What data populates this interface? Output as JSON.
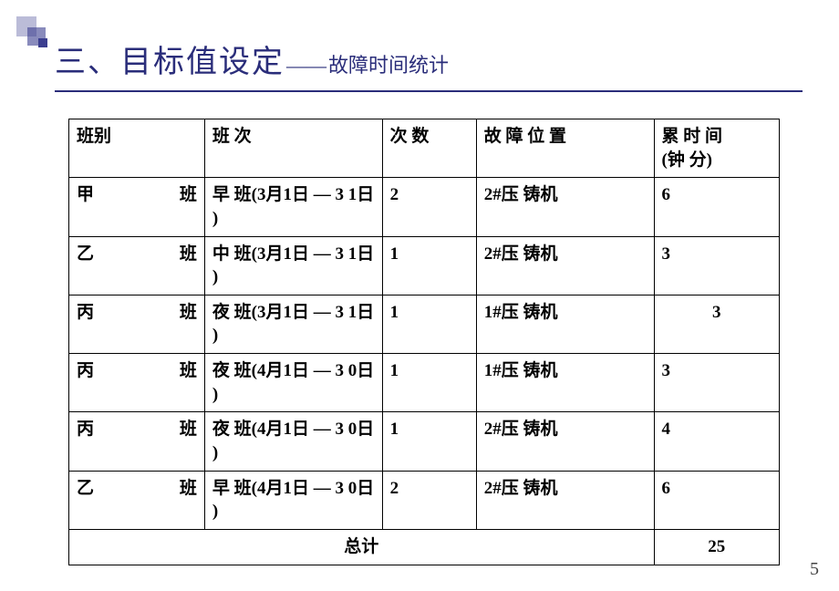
{
  "title_main": "三、目标值设定",
  "title_dash": "——",
  "title_sub": "故障时间统计",
  "page_number": "5",
  "table": {
    "headers": {
      "col1": "班别",
      "col2": "班        次",
      "col3": "次    数",
      "col4": "故  障  位  置",
      "col5a": "累    时  间",
      "col5b": "(钟    分)"
    },
    "rows": [
      {
        "ban_l": "甲",
        "ban_r": "班",
        "shift": "早 班(3月1日 —  3  1日    )",
        "count": "2",
        "pos": "2#压  铸机",
        "time": "6",
        "center": false
      },
      {
        "ban_l": "乙",
        "ban_r": "班",
        "shift": "中 班(3月1日 —  3  1日    )",
        "count": "1",
        "pos": "2#压  铸机",
        "time": "3",
        "center": false
      },
      {
        "ban_l": "丙",
        "ban_r": "班",
        "shift": "夜 班(3月1日 —  3  1日    )",
        "count": "1",
        "pos": "1#压  铸机",
        "time": "3",
        "center": true
      },
      {
        "ban_l": "丙",
        "ban_r": "班",
        "shift": "夜 班(4月1日 —  3  0日    )",
        "count": "1",
        "pos": "1#压  铸机",
        "time": "3",
        "center": false
      },
      {
        "ban_l": "丙",
        "ban_r": "班",
        "shift": "夜 班(4月1日 —  3  0日    )",
        "count": "1",
        "pos": "2#压  铸机",
        "time": "4",
        "center": false
      },
      {
        "ban_l": "乙",
        "ban_r": "班",
        "shift": "早 班(4月1日 —  3  0日    )",
        "count": "2",
        "pos": "2#压  铸机",
        "time": "6",
        "center": false
      }
    ],
    "total_label": "总计",
    "total_value": "25"
  },
  "colors": {
    "title": "#2a2d7a",
    "border": "#000000",
    "deco": "#3b3e8f",
    "bg": "#ffffff"
  }
}
